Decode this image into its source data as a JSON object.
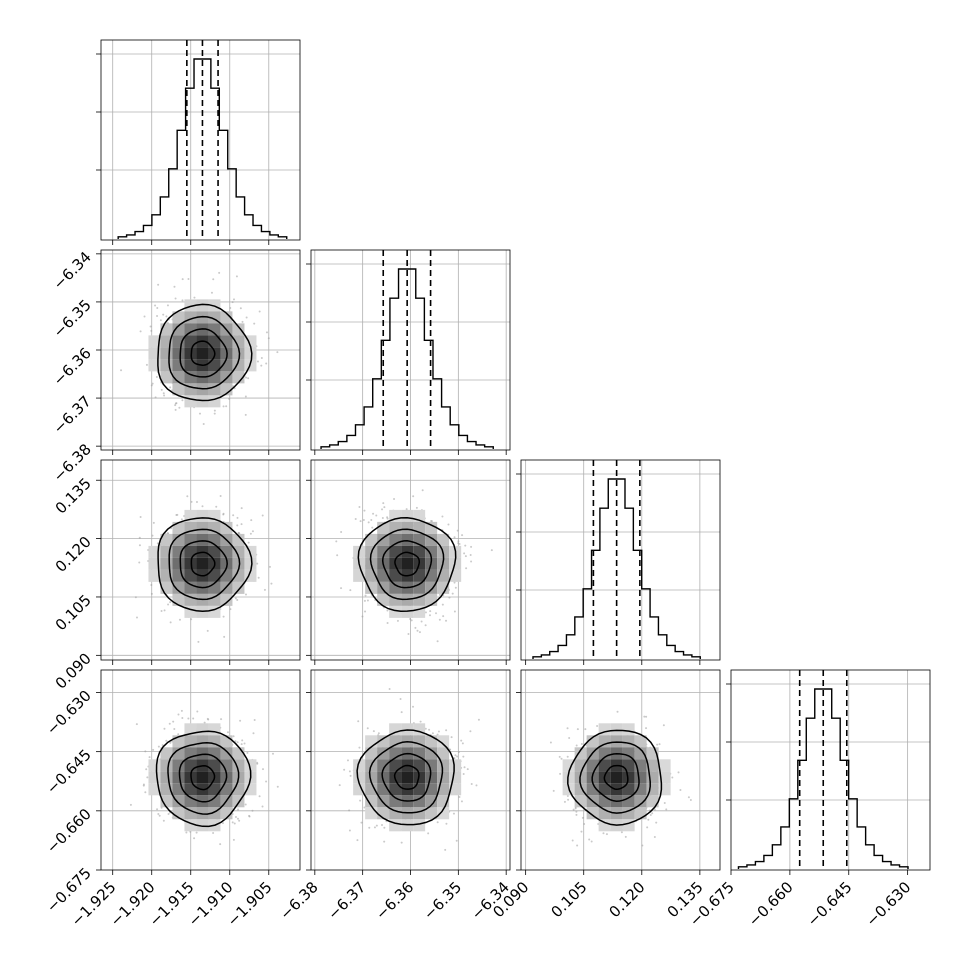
{
  "chart_data": {
    "type": "corner",
    "parameters": [
      {
        "range": [
          -1.9265,
          -1.901
        ],
        "ticks": [
          "−1.925",
          "−1.920",
          "−1.915",
          "−1.910",
          "−1.905"
        ],
        "tick_values": [
          -1.925,
          -1.92,
          -1.915,
          -1.91,
          -1.905
        ],
        "mean": -1.9135,
        "sigma": 0.003,
        "quantiles": [
          -1.9155,
          -1.9135,
          -1.9115
        ]
      },
      {
        "range": [
          -6.3808,
          -6.3392
        ],
        "ticks": [
          "−6.38",
          "−6.37",
          "−6.36",
          "−6.35",
          "−6.34"
        ],
        "tick_values": [
          -6.38,
          -6.37,
          -6.36,
          -6.35,
          -6.34
        ],
        "mean": -6.3607,
        "sigma": 0.005,
        "quantiles": [
          -6.3657,
          -6.3607,
          -6.3558
        ]
      },
      {
        "range": [
          0.0888,
          0.1402
        ],
        "ticks": [
          "0.090",
          "0.105",
          "0.120",
          "0.135"
        ],
        "tick_values": [
          0.09,
          0.105,
          0.12,
          0.135
        ],
        "mean": 0.1135,
        "sigma": 0.006,
        "quantiles": [
          0.1075,
          0.1135,
          0.1195
        ]
      },
      {
        "range": [
          -0.675,
          -0.6243
        ],
        "ticks": [
          "−0.675",
          "−0.660",
          "−0.645",
          "−0.630"
        ],
        "tick_values": [
          -0.675,
          -0.66,
          -0.645,
          -0.63
        ],
        "mean": -0.6515,
        "sigma": 0.006,
        "quantiles": [
          -0.6575,
          -0.6515,
          -0.6455
        ]
      }
    ],
    "histogram_bins": 20,
    "contour_levels": [
      "0.5σ",
      "1σ",
      "1.5σ",
      "2σ"
    ],
    "grid": true,
    "colors": {
      "hist": "#000000",
      "scatter": "#9e9e9e",
      "density": "#000000",
      "grid": "#b0b0b0"
    }
  }
}
